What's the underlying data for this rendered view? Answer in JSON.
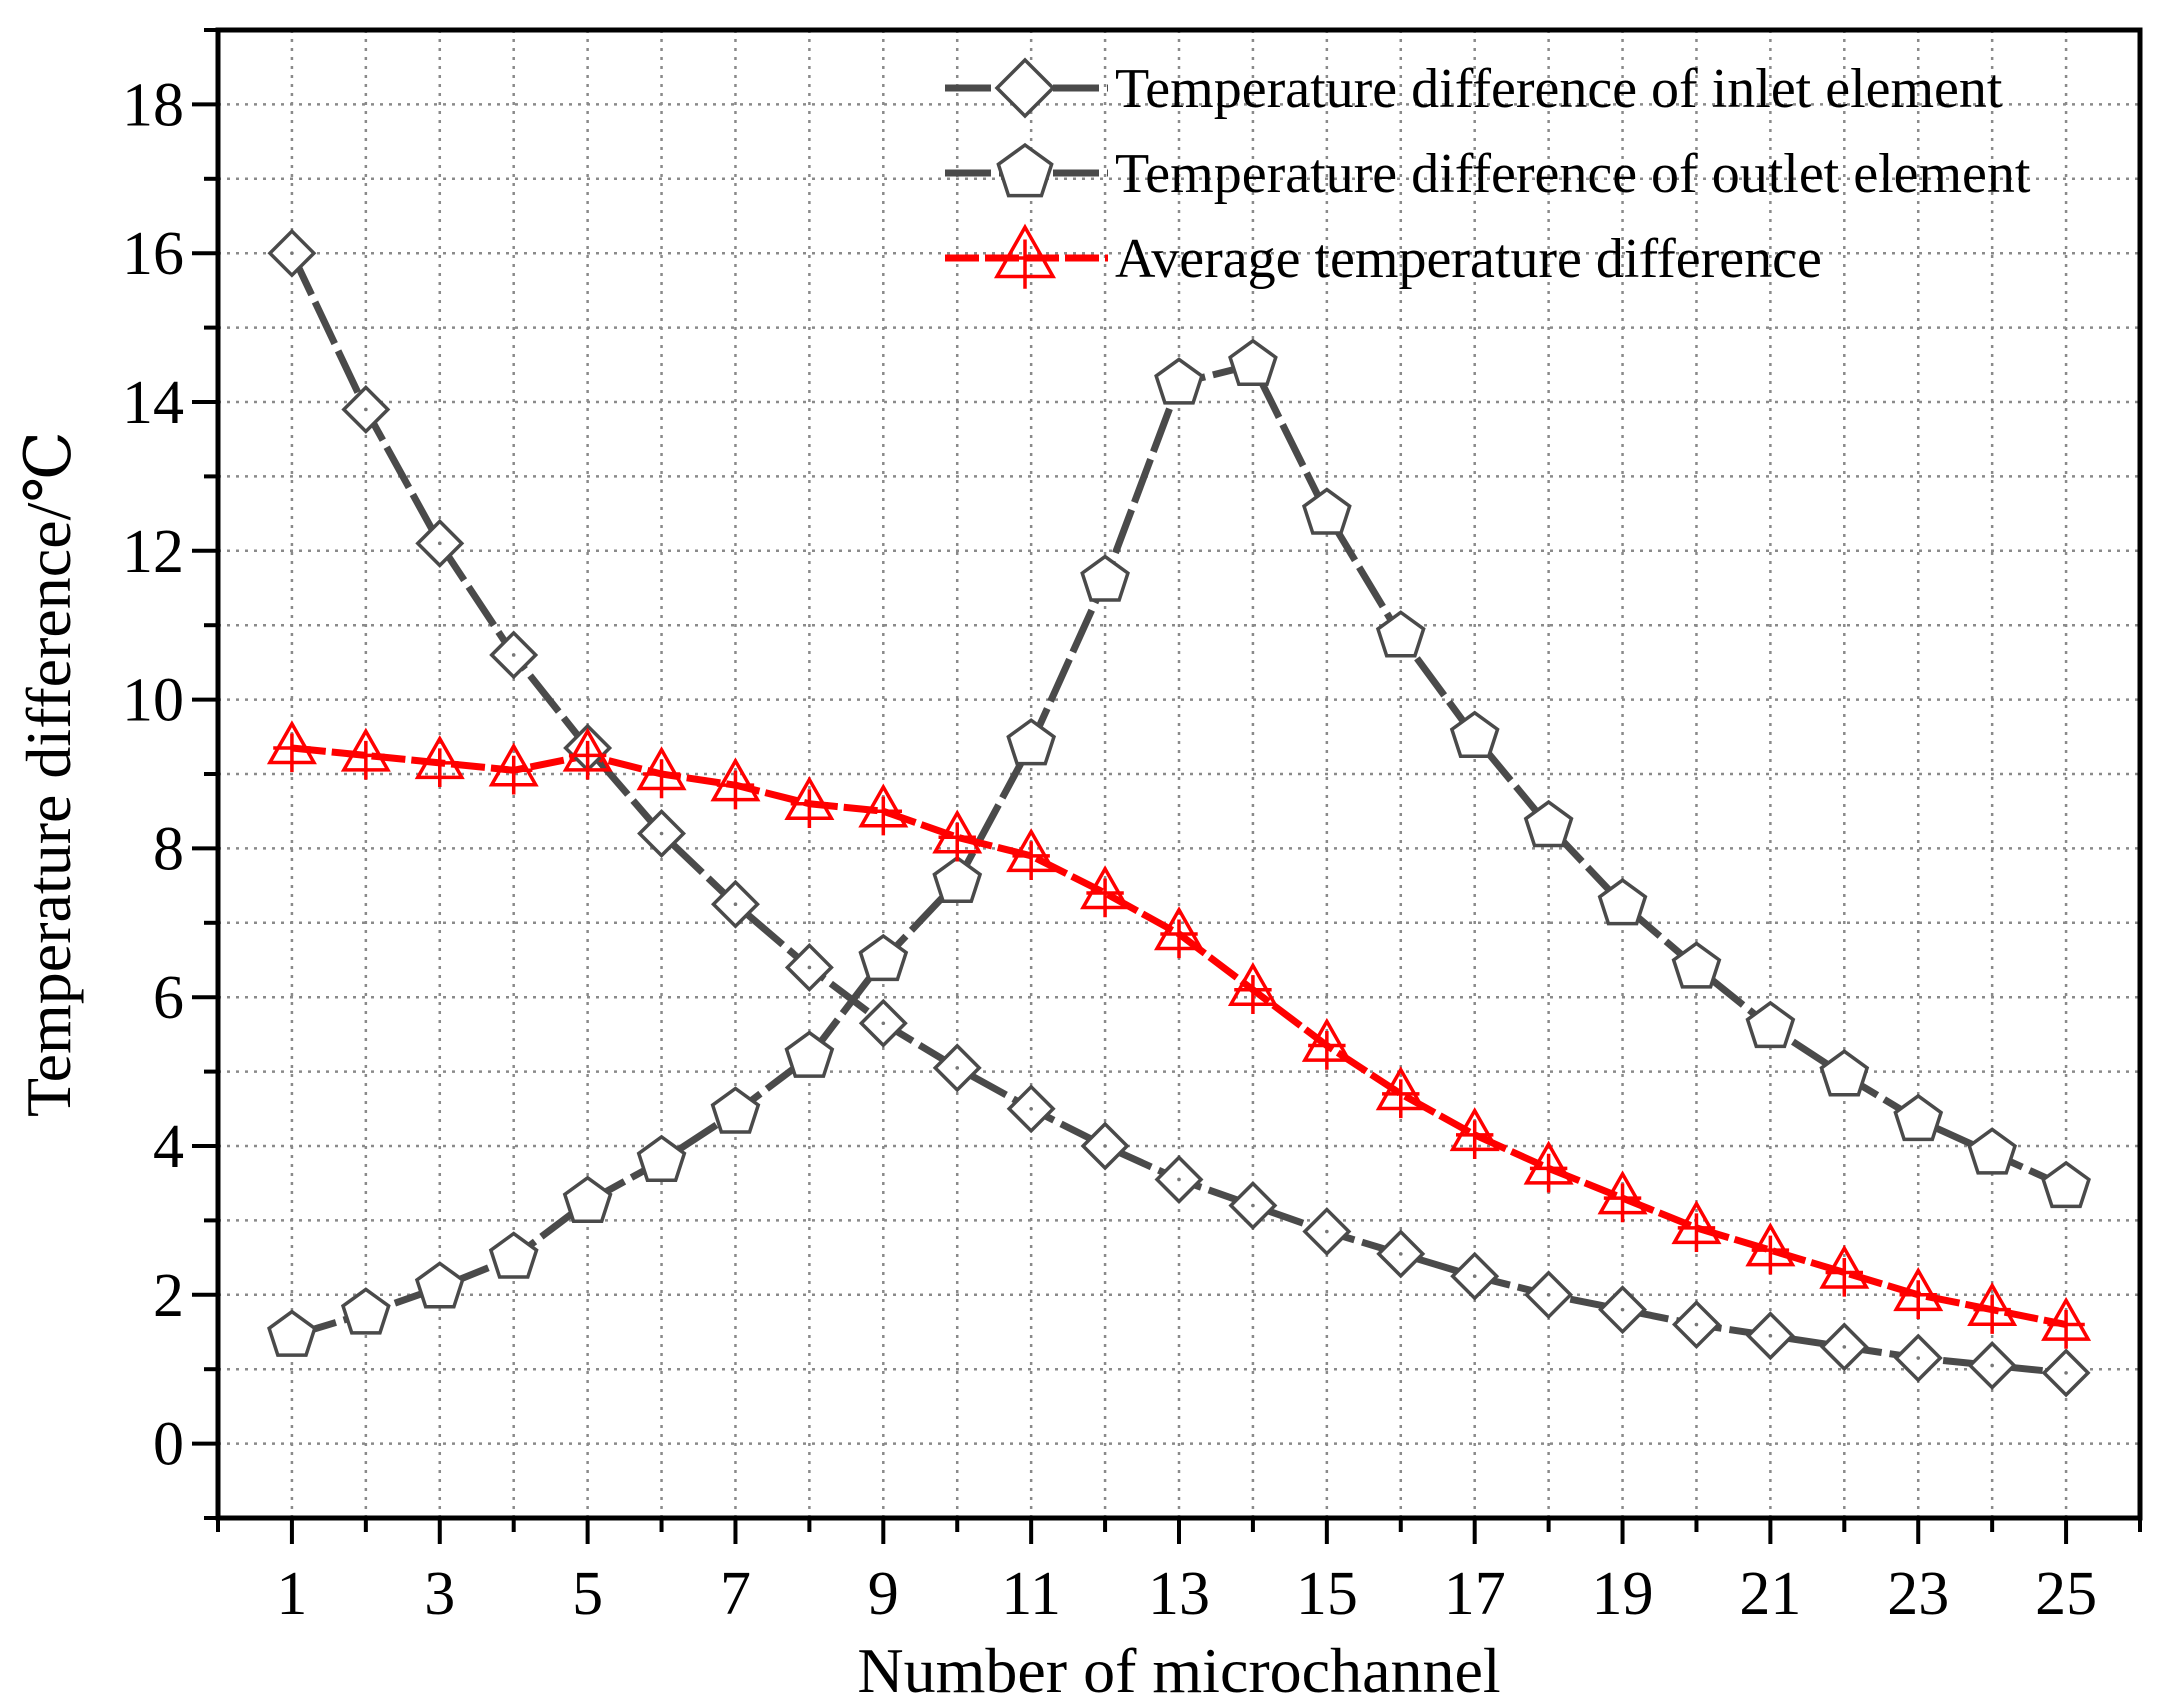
{
  "chart_data": {
    "type": "line",
    "title": "",
    "xlabel": "Number of microchannel",
    "ylabel": "Temperature difference/℃",
    "xlim": [
      0,
      26
    ],
    "ylim": [
      -1,
      19
    ],
    "xticks": [
      1,
      3,
      5,
      7,
      9,
      11,
      13,
      15,
      17,
      19,
      21,
      23,
      25
    ],
    "yticks": [
      0,
      2,
      4,
      6,
      8,
      10,
      12,
      14,
      16,
      18
    ],
    "grid": true,
    "legend_position": "top-right",
    "x": [
      1,
      2,
      3,
      4,
      5,
      6,
      7,
      8,
      9,
      10,
      11,
      12,
      13,
      14,
      15,
      16,
      17,
      18,
      19,
      20,
      21,
      22,
      23,
      24,
      25
    ],
    "series": [
      {
        "name": "Temperature difference of inlet element",
        "color": "#4a4a4a",
        "marker": "diamond",
        "values": [
          16.0,
          13.9,
          12.1,
          10.6,
          9.35,
          8.2,
          7.25,
          6.4,
          5.65,
          5.05,
          4.5,
          4.0,
          3.55,
          3.2,
          2.85,
          2.55,
          2.25,
          2.0,
          1.8,
          1.6,
          1.45,
          1.3,
          1.15,
          1.05,
          0.95
        ]
      },
      {
        "name": "Temperature difference of outlet element",
        "color": "#4a4a4a",
        "marker": "pentagon",
        "values": [
          1.45,
          1.75,
          2.1,
          2.5,
          3.25,
          3.8,
          4.45,
          5.2,
          6.5,
          7.55,
          9.4,
          11.6,
          14.25,
          14.5,
          12.5,
          10.85,
          9.5,
          8.3,
          7.25,
          6.4,
          5.6,
          4.95,
          4.35,
          3.9,
          3.45
        ]
      },
      {
        "name": "Average temperature difference",
        "color": "#ff0000",
        "marker": "triangle",
        "values": [
          9.35,
          9.25,
          9.15,
          9.05,
          9.25,
          9.0,
          8.85,
          8.6,
          8.5,
          8.15,
          7.9,
          7.4,
          6.85,
          6.1,
          5.35,
          4.7,
          4.15,
          3.7,
          3.3,
          2.9,
          2.6,
          2.3,
          2.0,
          1.8,
          1.6
        ]
      }
    ]
  }
}
